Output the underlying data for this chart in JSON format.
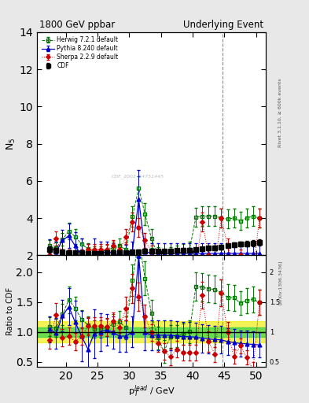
{
  "title_left": "1800 GeV ppbar",
  "title_right": "Underlying Event",
  "ylabel_main": "N$_5$",
  "ylabel_ratio": "Ratio to CDF",
  "xlabel": "p$_T^{lead}$ / GeV",
  "right_label_main": "Rivet 3.1.10, ≥ 600k events",
  "right_label_ratio": "[arXiv:1306.3436]",
  "watermark": "CDF_2001_S4751445",
  "vline_x": 44.7,
  "ylim_main": [
    2.0,
    14.0
  ],
  "ylim_ratio": [
    0.42,
    2.28
  ],
  "xlim": [
    15.5,
    51.5
  ],
  "xticks": [
    20,
    25,
    30,
    35,
    40,
    45,
    50
  ],
  "yticks_main": [
    2,
    4,
    6,
    8,
    10,
    12,
    14
  ],
  "yticks_ratio": [
    0.5,
    1.0,
    1.5,
    2.0
  ],
  "cdf_x": [
    17.5,
    18.5,
    19.5,
    20.5,
    21.5,
    22.5,
    23.5,
    24.5,
    25.5,
    26.5,
    27.5,
    28.5,
    29.5,
    30.5,
    31.5,
    32.5,
    33.5,
    34.5,
    35.5,
    36.5,
    37.5,
    38.5,
    39.5,
    40.5,
    41.5,
    42.5,
    43.5,
    44.5,
    45.5,
    46.5,
    47.5,
    48.5,
    49.5,
    50.5
  ],
  "cdf_y": [
    2.3,
    2.25,
    2.2,
    2.15,
    2.15,
    2.15,
    2.1,
    2.1,
    2.1,
    2.12,
    2.12,
    2.15,
    2.15,
    2.2,
    2.2,
    2.22,
    2.22,
    2.22,
    2.22,
    2.22,
    2.25,
    2.28,
    2.28,
    2.3,
    2.35,
    2.38,
    2.4,
    2.42,
    2.5,
    2.55,
    2.6,
    2.62,
    2.65,
    2.68
  ],
  "cdf_yerr": [
    0.18,
    0.14,
    0.12,
    0.1,
    0.1,
    0.1,
    0.1,
    0.1,
    0.1,
    0.1,
    0.1,
    0.1,
    0.1,
    0.1,
    0.1,
    0.1,
    0.1,
    0.1,
    0.1,
    0.1,
    0.1,
    0.1,
    0.1,
    0.1,
    0.1,
    0.1,
    0.1,
    0.1,
    0.12,
    0.13,
    0.14,
    0.15,
    0.16,
    0.18
  ],
  "herwig_x": [
    17.5,
    18.5,
    19.5,
    20.5,
    21.5,
    22.5,
    23.5,
    24.5,
    25.5,
    26.5,
    27.5,
    28.5,
    29.5,
    30.5,
    31.5,
    32.5,
    33.5,
    34.5,
    35.5,
    36.5,
    37.5,
    38.5,
    39.5,
    40.5,
    41.5,
    42.5,
    43.5,
    44.5,
    45.5,
    46.5,
    47.5,
    48.5,
    49.5,
    50.5
  ],
  "herwig_y": [
    2.5,
    2.4,
    2.85,
    3.3,
    3.0,
    2.6,
    2.35,
    2.2,
    2.2,
    2.28,
    2.4,
    2.5,
    2.3,
    4.1,
    5.6,
    4.2,
    2.9,
    2.0,
    1.5,
    2.05,
    2.1,
    2.2,
    2.3,
    4.05,
    4.1,
    4.1,
    4.1,
    4.0,
    3.95,
    4.0,
    3.85,
    4.0,
    4.1,
    4.0
  ],
  "herwig_yerr": [
    0.3,
    0.3,
    0.35,
    0.45,
    0.4,
    0.3,
    0.28,
    0.28,
    0.28,
    0.28,
    0.32,
    0.38,
    0.4,
    0.55,
    0.65,
    0.6,
    0.5,
    0.42,
    0.42,
    0.4,
    0.4,
    0.4,
    0.42,
    0.52,
    0.52,
    0.52,
    0.52,
    0.5,
    0.5,
    0.5,
    0.48,
    0.5,
    0.52,
    0.5
  ],
  "pythia_x": [
    17.5,
    18.5,
    19.5,
    20.5,
    21.5,
    22.5,
    23.5,
    24.5,
    25.5,
    26.5,
    27.5,
    28.5,
    29.5,
    30.5,
    31.5,
    32.5,
    33.5,
    34.5,
    35.5,
    36.5,
    37.5,
    38.5,
    39.5,
    40.5,
    41.5,
    42.5,
    43.5,
    44.5,
    45.5,
    46.5,
    47.5,
    48.5,
    49.5,
    50.5
  ],
  "pythia_y": [
    2.4,
    2.2,
    2.8,
    3.05,
    2.5,
    2.0,
    1.5,
    2.05,
    2.1,
    2.2,
    2.1,
    2.0,
    2.0,
    2.2,
    5.0,
    2.2,
    2.1,
    2.1,
    2.1,
    2.1,
    2.1,
    2.1,
    2.1,
    2.1,
    2.1,
    2.1,
    2.1,
    2.1,
    2.1,
    2.1,
    2.1,
    2.1,
    2.1,
    2.1
  ],
  "pythia_yerr": [
    0.45,
    0.55,
    0.55,
    0.65,
    0.75,
    0.9,
    1.1,
    0.85,
    0.65,
    0.55,
    0.55,
    0.55,
    0.55,
    0.55,
    1.6,
    0.65,
    0.55,
    0.55,
    0.55,
    0.55,
    0.55,
    0.55,
    0.55,
    0.55,
    0.55,
    0.55,
    0.55,
    0.55,
    0.55,
    0.55,
    0.55,
    0.55,
    0.55,
    0.55
  ],
  "sherpa_x": [
    17.5,
    18.5,
    19.5,
    20.5,
    21.5,
    22.5,
    23.5,
    24.5,
    25.5,
    26.5,
    27.5,
    28.5,
    29.5,
    30.5,
    31.5,
    32.5,
    33.5,
    34.5,
    35.5,
    36.5,
    37.5,
    38.5,
    39.5,
    40.5,
    41.5,
    42.5,
    43.5,
    44.5,
    45.5,
    46.5,
    47.5,
    48.5,
    49.5,
    50.5
  ],
  "sherpa_y": [
    2.0,
    2.9,
    2.0,
    2.0,
    1.8,
    2.0,
    2.3,
    2.3,
    2.3,
    2.3,
    2.5,
    2.3,
    3.0,
    3.8,
    3.5,
    2.8,
    2.2,
    1.8,
    1.5,
    1.3,
    1.6,
    1.5,
    1.5,
    1.5,
    3.8,
    2.0,
    1.5,
    4.0,
    2.5,
    1.5,
    2.0,
    1.5,
    1.0,
    4.0
  ],
  "sherpa_yerr": [
    0.3,
    0.4,
    0.3,
    0.3,
    0.3,
    0.3,
    0.3,
    0.3,
    0.3,
    0.3,
    0.3,
    0.3,
    0.4,
    0.5,
    0.5,
    0.4,
    0.3,
    0.3,
    0.3,
    0.3,
    0.3,
    0.3,
    0.3,
    0.3,
    0.5,
    0.4,
    0.3,
    0.5,
    0.4,
    0.3,
    0.3,
    0.3,
    0.3,
    0.5
  ],
  "cdf_color": "#000000",
  "herwig_color": "#007700",
  "pythia_color": "#0000cc",
  "sherpa_color": "#cc0000",
  "vline_color": "#888888",
  "band_yellow_lo": 0.82,
  "band_yellow_hi": 1.18,
  "band_green_lo": 0.92,
  "band_green_hi": 1.08,
  "band_yellow_color": "#eeee00",
  "band_green_color": "#00cc44",
  "bg_color": "#e8e8e8",
  "panel_bg": "#ffffff"
}
